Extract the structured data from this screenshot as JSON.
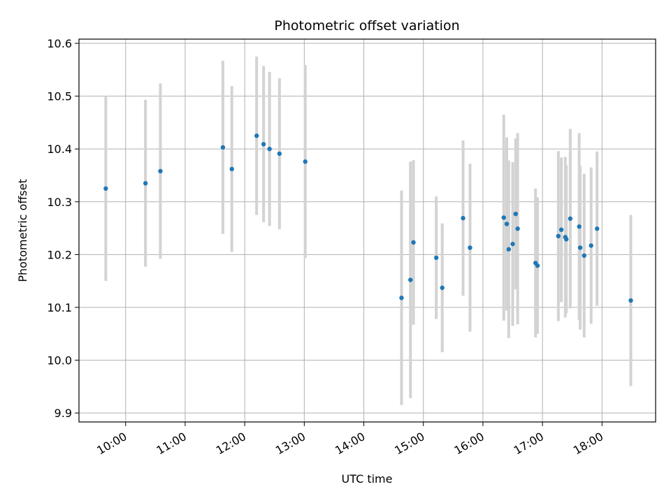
{
  "chart_data": {
    "type": "scatter",
    "title": "Photometric offset variation",
    "xlabel": "UTC time",
    "ylabel": "Photometric offset",
    "x_ticks": [
      "10:00",
      "11:00",
      "12:00",
      "13:00",
      "14:00",
      "15:00",
      "16:00",
      "17:00",
      "18:00"
    ],
    "y_ticks": [
      "9.9",
      "10.0",
      "10.1",
      "10.2",
      "10.3",
      "10.4",
      "10.5",
      "10.6"
    ],
    "xlim": [
      "09:13",
      "18:54"
    ],
    "ylim": [
      9.883,
      10.608
    ],
    "grid": true,
    "colors": {
      "point": "#1f77b4",
      "errorbar": "#d3d3d3",
      "grid": "#b0b0b0"
    },
    "points": [
      {
        "x": "09:40",
        "y": 10.325,
        "yerr": 0.175
      },
      {
        "x": "10:20",
        "y": 10.335,
        "yerr": 0.158
      },
      {
        "x": "10:35",
        "y": 10.358,
        "yerr": 0.166
      },
      {
        "x": "11:38",
        "y": 10.403,
        "yerr": 0.164
      },
      {
        "x": "11:47",
        "y": 10.362,
        "yerr": 0.157
      },
      {
        "x": "12:12",
        "y": 10.425,
        "yerr": 0.15
      },
      {
        "x": "12:19",
        "y": 10.409,
        "yerr": 0.148
      },
      {
        "x": "12:25",
        "y": 10.4,
        "yerr": 0.146
      },
      {
        "x": "12:35",
        "y": 10.391,
        "yerr": 0.143
      },
      {
        "x": "13:01",
        "y": 10.376,
        "yerr": 0.183
      },
      {
        "x": "14:38",
        "y": 10.118,
        "yerr": 0.203
      },
      {
        "x": "14:47",
        "y": 10.152,
        "yerr": 0.224
      },
      {
        "x": "14:50",
        "y": 10.223,
        "yerr": 0.156
      },
      {
        "x": "15:13",
        "y": 10.194,
        "yerr": 0.116
      },
      {
        "x": "15:19",
        "y": 10.137,
        "yerr": 0.122
      },
      {
        "x": "15:40",
        "y": 10.269,
        "yerr": 0.147
      },
      {
        "x": "15:47",
        "y": 10.213,
        "yerr": 0.159
      },
      {
        "x": "16:21",
        "y": 10.27,
        "yerr": 0.195
      },
      {
        "x": "16:24",
        "y": 10.258,
        "yerr": 0.164
      },
      {
        "x": "16:26",
        "y": 10.21,
        "yerr": 0.168
      },
      {
        "x": "16:30",
        "y": 10.22,
        "yerr": 0.155
      },
      {
        "x": "16:33",
        "y": 10.277,
        "yerr": 0.143
      },
      {
        "x": "16:35",
        "y": 10.249,
        "yerr": 0.181
      },
      {
        "x": "16:53",
        "y": 10.184,
        "yerr": 0.141
      },
      {
        "x": "16:55",
        "y": 10.179,
        "yerr": 0.129
      },
      {
        "x": "17:16",
        "y": 10.235,
        "yerr": 0.161
      },
      {
        "x": "17:19",
        "y": 10.247,
        "yerr": 0.137
      },
      {
        "x": "17:23",
        "y": 10.233,
        "yerr": 0.152
      },
      {
        "x": "17:24",
        "y": 10.229,
        "yerr": 0.14
      },
      {
        "x": "17:28",
        "y": 10.268,
        "yerr": 0.17
      },
      {
        "x": "17:37",
        "y": 10.253,
        "yerr": 0.177
      },
      {
        "x": "17:38",
        "y": 10.213,
        "yerr": 0.155
      },
      {
        "x": "17:42",
        "y": 10.198,
        "yerr": 0.155
      },
      {
        "x": "17:49",
        "y": 10.217,
        "yerr": 0.148
      },
      {
        "x": "17:55",
        "y": 10.249,
        "yerr": 0.146
      },
      {
        "x": "18:29",
        "y": 10.113,
        "yerr": 0.162
      }
    ]
  }
}
